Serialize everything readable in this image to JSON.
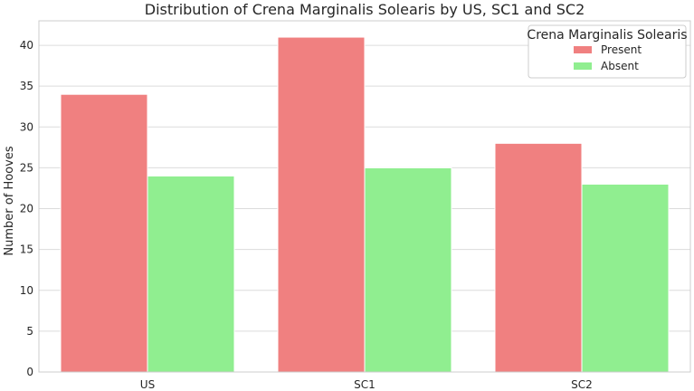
{
  "chart_data": {
    "type": "bar",
    "title": "Distribution of Crena Marginalis Solearis by US, SC1 and SC2",
    "xlabel": "",
    "ylabel": "Number of Hooves",
    "categories": [
      "US",
      "SC1",
      "SC2"
    ],
    "series": [
      {
        "name": "Present",
        "values": [
          34,
          41,
          28
        ],
        "color": "#f08080"
      },
      {
        "name": "Absent",
        "values": [
          24,
          25,
          23
        ],
        "color": "#90ee90"
      }
    ],
    "ylim": [
      0,
      43
    ],
    "yticks": [
      0,
      5,
      10,
      15,
      20,
      25,
      30,
      35,
      40
    ],
    "grid": true,
    "legend": {
      "title": "Crena Marginalis Solearis",
      "placement": "top-right"
    }
  }
}
